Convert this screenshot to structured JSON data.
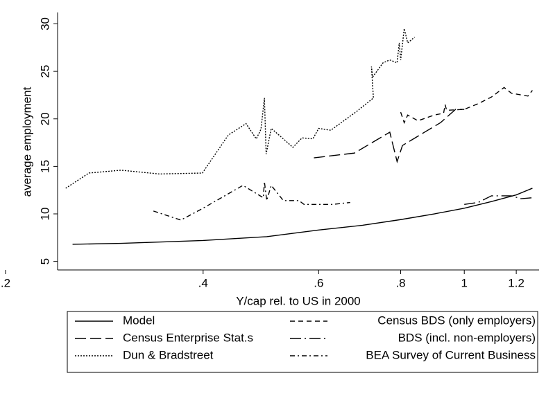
{
  "chart_data": {
    "type": "line",
    "x_label": "Y/cap rel. to US in 2000",
    "y_label": "average employment",
    "xscale": "log",
    "xlim": [
      0.2,
      1.3
    ],
    "ylim": [
      4.1,
      31.2
    ],
    "xticks": [
      {
        "value": 0.2,
        "label": ".2"
      },
      {
        "value": 0.4,
        "label": ".4"
      },
      {
        "value": 0.6,
        "label": ".6"
      },
      {
        "value": 0.8,
        "label": ".8"
      },
      1,
      {
        "value": 1.2,
        "label": "1.2"
      }
    ],
    "yticks": [
      5,
      10,
      15,
      20,
      25,
      30
    ],
    "grid": false,
    "legend": "bottom",
    "series": [
      {
        "name": "Model",
        "color": "#000000",
        "style": "solid",
        "x": [
          0.253,
          0.3,
          0.4,
          0.5,
          0.6,
          0.7,
          0.8,
          0.9,
          1.0,
          1.1,
          1.2,
          1.27
        ],
        "values": [
          6.8,
          6.9,
          7.2,
          7.6,
          8.3,
          8.8,
          9.4,
          10.0,
          10.6,
          11.3,
          12.0,
          12.7
        ]
      },
      {
        "name": "Census BDS (only employers)",
        "color": "#000000",
        "style": "dash",
        "x": [
          0.8,
          0.81,
          0.82,
          0.85,
          0.9,
          0.93,
          0.935,
          0.94,
          1.0,
          1.05,
          1.1,
          1.15,
          1.18,
          1.25,
          1.27
        ],
        "values": [
          20.7,
          19.6,
          20.4,
          19.8,
          20.4,
          20.6,
          21.5,
          20.9,
          21.0,
          21.6,
          22.3,
          23.3,
          22.7,
          22.4,
          23.0
        ]
      },
      {
        "name": "Census Enterprise Stat.s",
        "color": "#000000",
        "style": "longdash",
        "x": [
          0.59,
          0.68,
          0.77,
          0.79,
          0.805,
          0.87,
          0.92,
          0.97,
          1.0
        ],
        "values": [
          15.9,
          16.4,
          18.6,
          15.5,
          17.2,
          18.6,
          19.6,
          21.0,
          21.0
        ]
      },
      {
        "name": "BDS (incl. non-employers)",
        "color": "#000000",
        "style": "longdashdot",
        "x": [
          1.0,
          1.05,
          1.1,
          1.15,
          1.18,
          1.22,
          1.27
        ],
        "values": [
          11.0,
          11.2,
          11.9,
          11.9,
          11.9,
          11.6,
          11.7
        ]
      },
      {
        "name": "Dun & Bradstreet",
        "color": "#000000",
        "style": "dot",
        "x": [
          0.247,
          0.268,
          0.3,
          0.343,
          0.399,
          0.437,
          0.465,
          0.482,
          0.49,
          0.496,
          0.499,
          0.508,
          0.53,
          0.548,
          0.566,
          0.588,
          0.6,
          0.626,
          0.686,
          0.727,
          0.722,
          0.725,
          0.752,
          0.77,
          0.79,
          0.796,
          0.8,
          0.81,
          0.82,
          0.84
        ],
        "values": [
          12.7,
          14.3,
          14.6,
          14.2,
          14.3,
          18.3,
          19.5,
          17.9,
          18.9,
          22.2,
          16.3,
          19.0,
          17.9,
          17.0,
          18.0,
          17.9,
          19.0,
          18.8,
          20.8,
          22.2,
          25.5,
          24.4,
          25.9,
          26.2,
          25.9,
          28.0,
          26.2,
          29.5,
          28.0,
          28.6
        ]
      },
      {
        "name": "BEA Survey of Current Business",
        "color": "#000000",
        "style": "dashdot",
        "x": [
          0.336,
          0.37,
          0.4,
          0.46,
          0.494,
          0.496,
          0.5,
          0.508,
          0.53,
          0.56,
          0.57,
          0.63,
          0.67
        ],
        "values": [
          10.3,
          9.35,
          10.6,
          13.0,
          11.7,
          13.4,
          11.4,
          13.0,
          11.4,
          11.4,
          11.0,
          11.0,
          11.2
        ]
      }
    ]
  }
}
